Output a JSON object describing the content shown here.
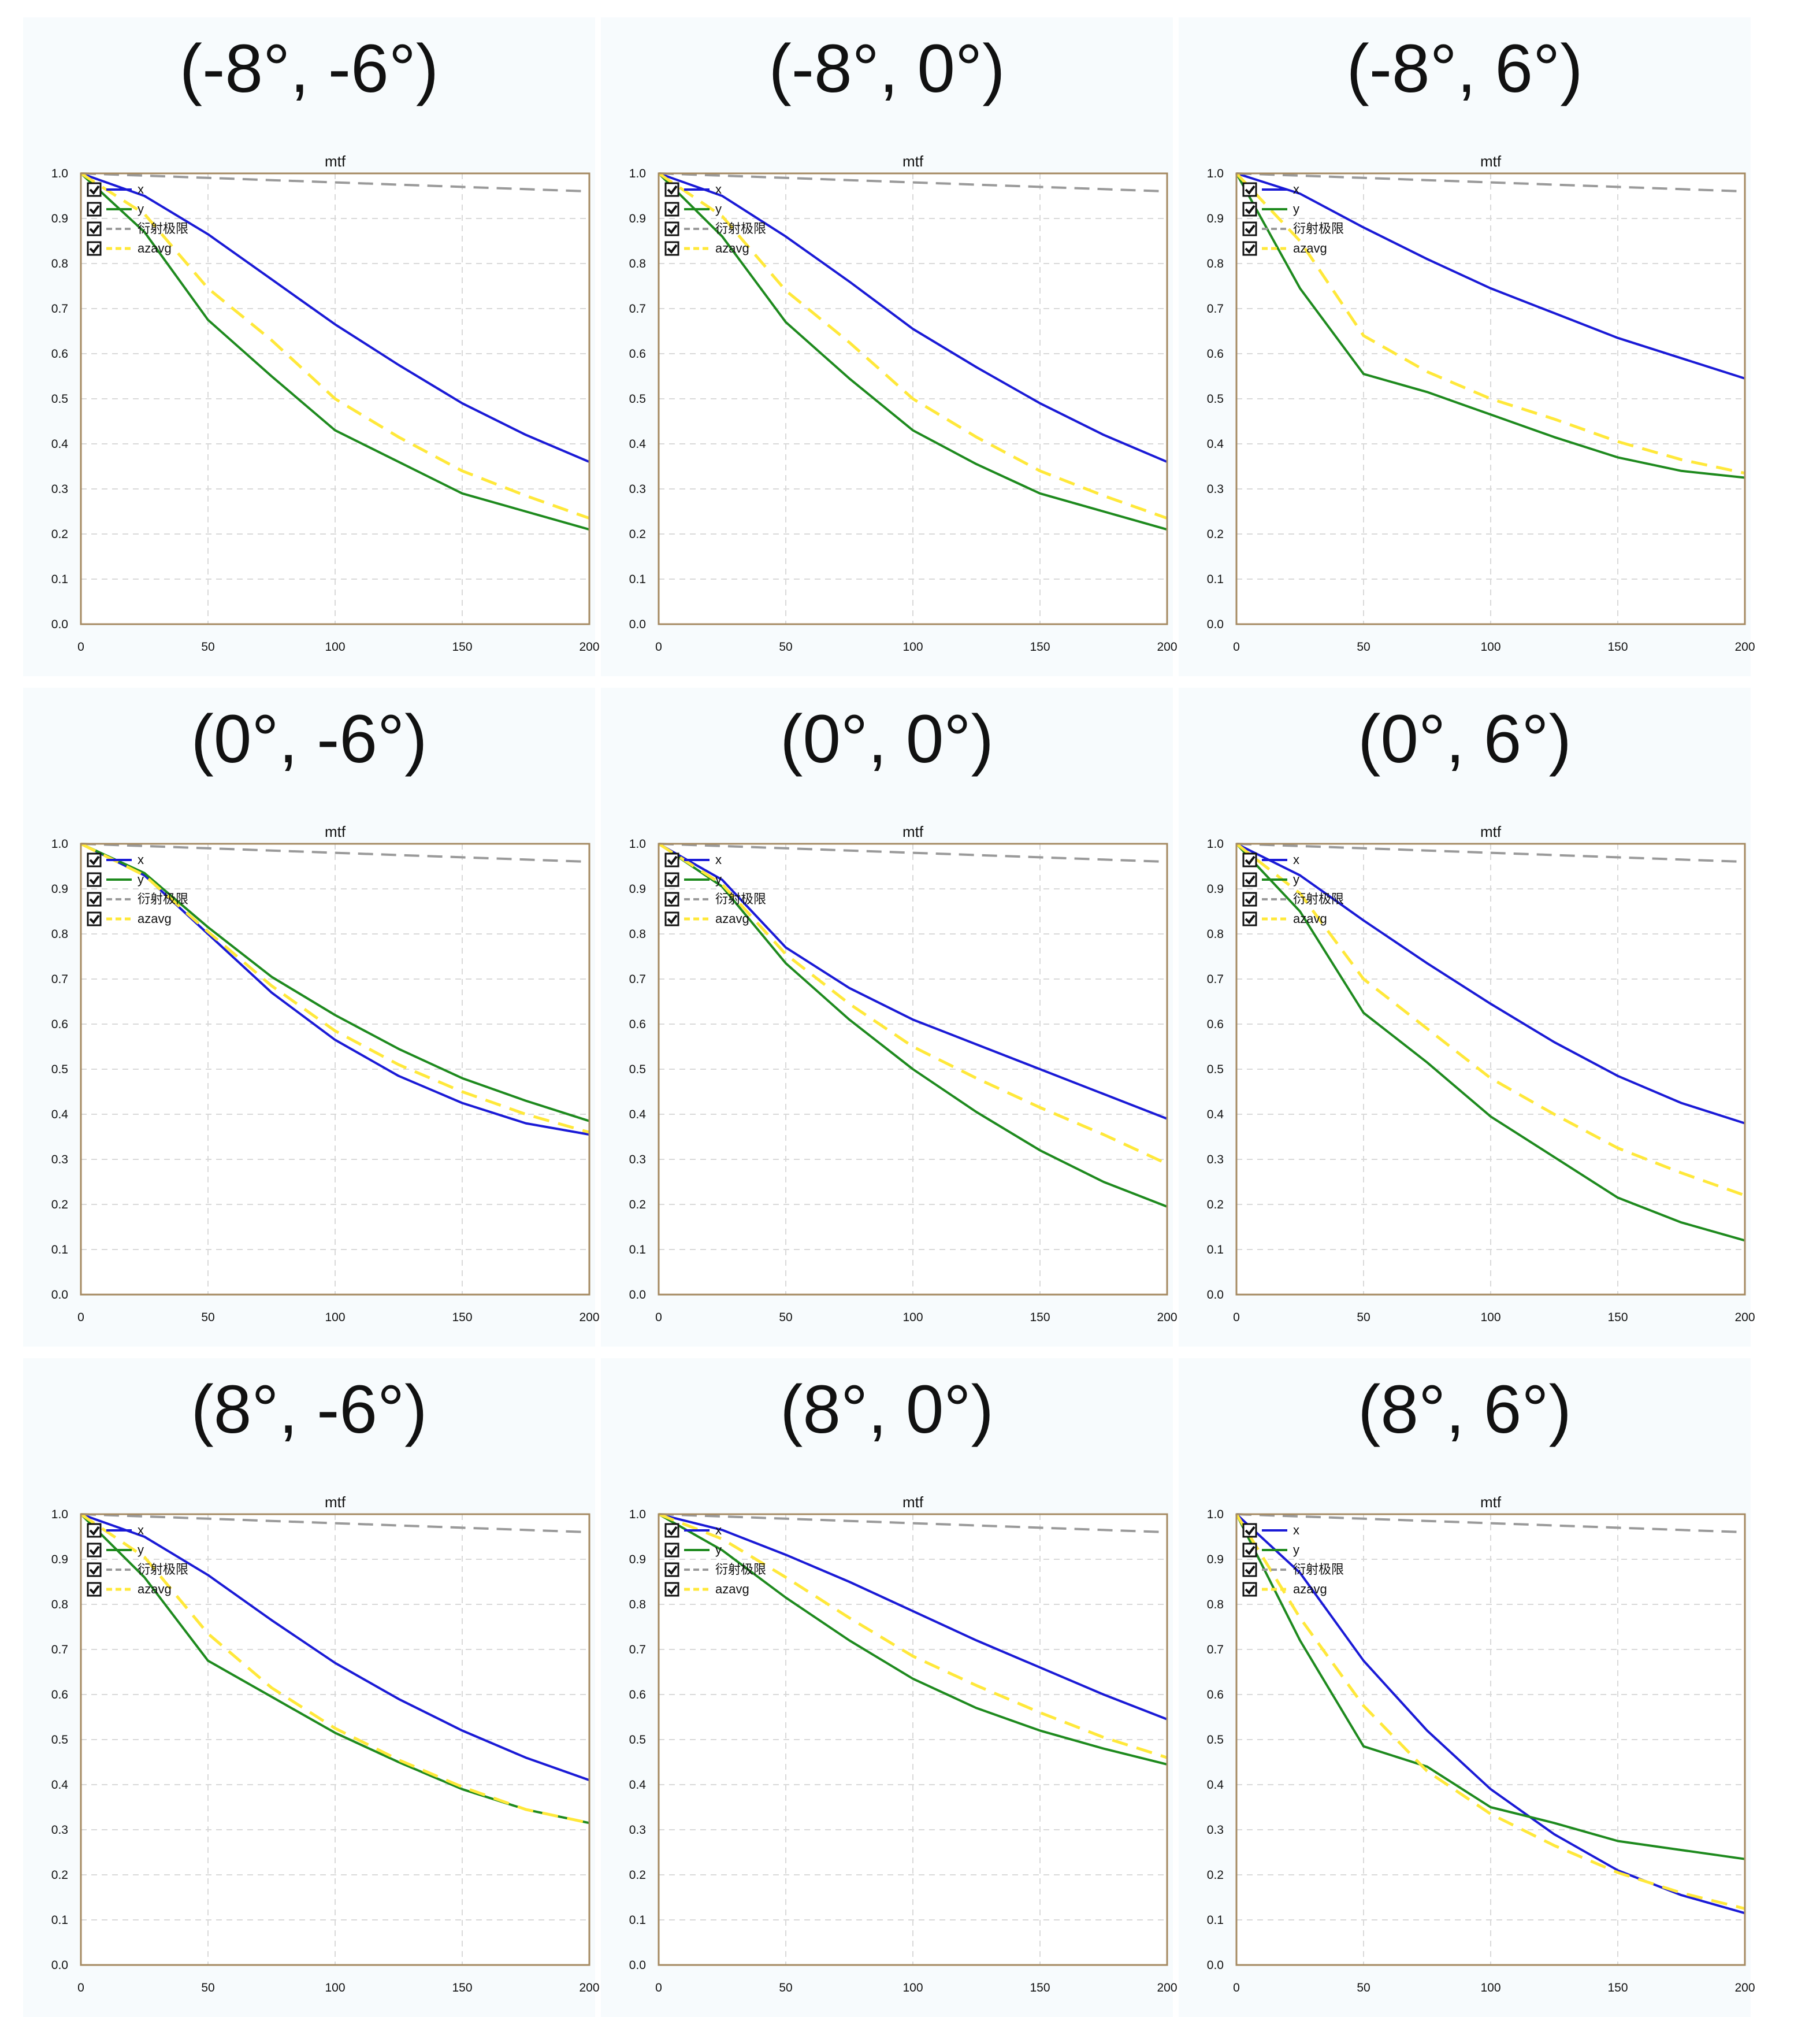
{
  "colors": {
    "x": "#1a1ad6",
    "y": "#1e8a1e",
    "diffraction": "#9a9a9a",
    "azavg": "#ffe83a",
    "frame": "#a58a62",
    "grid": "#d9d9d9",
    "checkbox": "#111111"
  },
  "legend_labels": [
    "x",
    "y",
    "衍射极限",
    "azavg"
  ],
  "chart_data": [
    {
      "panel_title": "(-8°, -6°)",
      "title": "mtf",
      "type": "line",
      "x": [
        0,
        25,
        50,
        75,
        100,
        125,
        150,
        175,
        200
      ],
      "xlim": [
        0,
        200
      ],
      "ylim": [
        0,
        1.0
      ],
      "xticks": [
        "0",
        "50",
        "100",
        "150",
        "200"
      ],
      "yticks": [
        "0.0",
        "0.1",
        "0.2",
        "0.3",
        "0.4",
        "0.5",
        "0.6",
        "0.7",
        "0.8",
        "0.9",
        "1.0"
      ],
      "grid": true,
      "legend_position": "top-left",
      "series": [
        {
          "name": "x",
          "values": [
            1.0,
            0.95,
            0.865,
            0.765,
            0.665,
            0.575,
            0.49,
            0.42,
            0.36
          ]
        },
        {
          "name": "y",
          "values": [
            1.0,
            0.87,
            0.675,
            0.55,
            0.43,
            0.36,
            0.29,
            0.25,
            0.21
          ]
        },
        {
          "name": "衍射极限",
          "values": [
            1.0,
            0.995,
            0.99,
            0.985,
            0.98,
            0.975,
            0.97,
            0.965,
            0.96
          ]
        },
        {
          "name": "azavg",
          "values": [
            1.0,
            0.91,
            0.745,
            0.63,
            0.5,
            0.415,
            0.34,
            0.285,
            0.235
          ]
        }
      ]
    },
    {
      "panel_title": "(-8°, 0°)",
      "title": "mtf",
      "type": "line",
      "x": [
        0,
        25,
        50,
        75,
        100,
        125,
        150,
        175,
        200
      ],
      "xlim": [
        0,
        200
      ],
      "ylim": [
        0,
        1.0
      ],
      "xticks": [
        "0",
        "50",
        "100",
        "150",
        "200"
      ],
      "yticks": [
        "0.0",
        "0.1",
        "0.2",
        "0.3",
        "0.4",
        "0.5",
        "0.6",
        "0.7",
        "0.8",
        "0.9",
        "1.0"
      ],
      "grid": true,
      "legend_position": "top-left",
      "series": [
        {
          "name": "x",
          "values": [
            1.0,
            0.95,
            0.86,
            0.76,
            0.655,
            0.57,
            0.49,
            0.42,
            0.36
          ]
        },
        {
          "name": "y",
          "values": [
            1.0,
            0.86,
            0.67,
            0.545,
            0.43,
            0.355,
            0.29,
            0.25,
            0.21
          ]
        },
        {
          "name": "衍射极限",
          "values": [
            1.0,
            0.995,
            0.99,
            0.985,
            0.98,
            0.975,
            0.97,
            0.965,
            0.96
          ]
        },
        {
          "name": "azavg",
          "values": [
            1.0,
            0.905,
            0.74,
            0.625,
            0.5,
            0.415,
            0.34,
            0.285,
            0.235
          ]
        }
      ]
    },
    {
      "panel_title": "(-8°, 6°)",
      "title": "mtf",
      "type": "line",
      "x": [
        0,
        25,
        50,
        75,
        100,
        125,
        150,
        175,
        200
      ],
      "xlim": [
        0,
        200
      ],
      "ylim": [
        0,
        1.0
      ],
      "xticks": [
        "0",
        "50",
        "100",
        "150",
        "200"
      ],
      "yticks": [
        "0.0",
        "0.1",
        "0.2",
        "0.3",
        "0.4",
        "0.5",
        "0.6",
        "0.7",
        "0.8",
        "0.9",
        "1.0"
      ],
      "grid": true,
      "legend_position": "top-left",
      "series": [
        {
          "name": "x",
          "values": [
            1.0,
            0.955,
            0.88,
            0.81,
            0.745,
            0.69,
            0.635,
            0.59,
            0.545
          ]
        },
        {
          "name": "y",
          "values": [
            1.0,
            0.745,
            0.555,
            0.515,
            0.465,
            0.415,
            0.37,
            0.34,
            0.325
          ]
        },
        {
          "name": "衍射极限",
          "values": [
            1.0,
            0.995,
            0.99,
            0.985,
            0.98,
            0.975,
            0.97,
            0.965,
            0.96
          ]
        },
        {
          "name": "azavg",
          "values": [
            1.0,
            0.85,
            0.64,
            0.56,
            0.5,
            0.455,
            0.405,
            0.365,
            0.335
          ]
        }
      ]
    },
    {
      "panel_title": "(0°, -6°)",
      "title": "mtf",
      "type": "line",
      "x": [
        0,
        25,
        50,
        75,
        100,
        125,
        150,
        175,
        200
      ],
      "xlim": [
        0,
        200
      ],
      "ylim": [
        0,
        1.0
      ],
      "xticks": [
        "0",
        "50",
        "100",
        "150",
        "200"
      ],
      "yticks": [
        "0.0",
        "0.1",
        "0.2",
        "0.3",
        "0.4",
        "0.5",
        "0.6",
        "0.7",
        "0.8",
        "0.9",
        "1.0"
      ],
      "grid": true,
      "legend_position": "top-left",
      "series": [
        {
          "name": "x",
          "values": [
            1.0,
            0.93,
            0.8,
            0.67,
            0.565,
            0.485,
            0.425,
            0.38,
            0.355
          ]
        },
        {
          "name": "y",
          "values": [
            1.0,
            0.935,
            0.815,
            0.705,
            0.62,
            0.545,
            0.48,
            0.43,
            0.385
          ]
        },
        {
          "name": "衍射极限",
          "values": [
            1.0,
            0.995,
            0.99,
            0.985,
            0.98,
            0.975,
            0.97,
            0.965,
            0.96
          ]
        },
        {
          "name": "azavg",
          "values": [
            1.0,
            0.93,
            0.805,
            0.685,
            0.585,
            0.51,
            0.45,
            0.4,
            0.36
          ]
        }
      ]
    },
    {
      "panel_title": "(0°, 0°)",
      "title": "mtf",
      "type": "line",
      "x": [
        0,
        25,
        50,
        75,
        100,
        125,
        150,
        175,
        200
      ],
      "xlim": [
        0,
        200
      ],
      "ylim": [
        0,
        1.0
      ],
      "xticks": [
        "0",
        "50",
        "100",
        "150",
        "200"
      ],
      "yticks": [
        "0.0",
        "0.1",
        "0.2",
        "0.3",
        "0.4",
        "0.5",
        "0.6",
        "0.7",
        "0.8",
        "0.9",
        "1.0"
      ],
      "grid": true,
      "legend_position": "top-left",
      "series": [
        {
          "name": "x",
          "values": [
            1.0,
            0.92,
            0.77,
            0.68,
            0.61,
            0.555,
            0.5,
            0.445,
            0.39
          ]
        },
        {
          "name": "y",
          "values": [
            1.0,
            0.905,
            0.735,
            0.61,
            0.5,
            0.405,
            0.32,
            0.25,
            0.195
          ]
        },
        {
          "name": "衍射极限",
          "values": [
            1.0,
            0.995,
            0.99,
            0.985,
            0.98,
            0.975,
            0.97,
            0.965,
            0.96
          ]
        },
        {
          "name": "azavg",
          "values": [
            1.0,
            0.91,
            0.755,
            0.645,
            0.55,
            0.48,
            0.415,
            0.355,
            0.29
          ]
        }
      ]
    },
    {
      "panel_title": "(0°, 6°)",
      "title": "mtf",
      "type": "line",
      "x": [
        0,
        25,
        50,
        75,
        100,
        125,
        150,
        175,
        200
      ],
      "xlim": [
        0,
        200
      ],
      "ylim": [
        0,
        1.0
      ],
      "xticks": [
        "0",
        "50",
        "100",
        "150",
        "200"
      ],
      "yticks": [
        "0.0",
        "0.1",
        "0.2",
        "0.3",
        "0.4",
        "0.5",
        "0.6",
        "0.7",
        "0.8",
        "0.9",
        "1.0"
      ],
      "grid": true,
      "legend_position": "top-left",
      "series": [
        {
          "name": "x",
          "values": [
            1.0,
            0.93,
            0.83,
            0.735,
            0.645,
            0.56,
            0.485,
            0.425,
            0.38
          ]
        },
        {
          "name": "y",
          "values": [
            1.0,
            0.85,
            0.625,
            0.515,
            0.395,
            0.305,
            0.215,
            0.16,
            0.12
          ]
        },
        {
          "name": "衍射极限",
          "values": [
            1.0,
            0.995,
            0.99,
            0.985,
            0.98,
            0.975,
            0.97,
            0.965,
            0.96
          ]
        },
        {
          "name": "azavg",
          "values": [
            1.0,
            0.89,
            0.7,
            0.59,
            0.48,
            0.4,
            0.325,
            0.27,
            0.22
          ]
        }
      ]
    },
    {
      "panel_title": "(8°, -6°)",
      "title": "mtf",
      "type": "line",
      "x": [
        0,
        25,
        50,
        75,
        100,
        125,
        150,
        175,
        200
      ],
      "xlim": [
        0,
        200
      ],
      "ylim": [
        0,
        1.0
      ],
      "xticks": [
        "0",
        "50",
        "100",
        "150",
        "200"
      ],
      "yticks": [
        "0.0",
        "0.1",
        "0.2",
        "0.3",
        "0.4",
        "0.5",
        "0.6",
        "0.7",
        "0.8",
        "0.9",
        "1.0"
      ],
      "grid": true,
      "legend_position": "top-left",
      "series": [
        {
          "name": "x",
          "values": [
            1.0,
            0.95,
            0.865,
            0.765,
            0.67,
            0.59,
            0.52,
            0.46,
            0.41
          ]
        },
        {
          "name": "y",
          "values": [
            1.0,
            0.86,
            0.675,
            0.595,
            0.515,
            0.45,
            0.39,
            0.345,
            0.315
          ]
        },
        {
          "name": "衍射极限",
          "values": [
            1.0,
            0.995,
            0.99,
            0.985,
            0.98,
            0.975,
            0.97,
            0.965,
            0.96
          ]
        },
        {
          "name": "azavg",
          "values": [
            1.0,
            0.905,
            0.735,
            0.615,
            0.525,
            0.455,
            0.395,
            0.345,
            0.315
          ]
        }
      ]
    },
    {
      "panel_title": "(8°, 0°)",
      "title": "mtf",
      "type": "line",
      "x": [
        0,
        25,
        50,
        75,
        100,
        125,
        150,
        175,
        200
      ],
      "xlim": [
        0,
        200
      ],
      "ylim": [
        0,
        1.0
      ],
      "xticks": [
        "0",
        "50",
        "100",
        "150",
        "200"
      ],
      "yticks": [
        "0.0",
        "0.1",
        "0.2",
        "0.3",
        "0.4",
        "0.5",
        "0.6",
        "0.7",
        "0.8",
        "0.9",
        "1.0"
      ],
      "grid": true,
      "legend_position": "top-left",
      "series": [
        {
          "name": "x",
          "values": [
            1.0,
            0.965,
            0.91,
            0.85,
            0.785,
            0.72,
            0.66,
            0.6,
            0.545
          ]
        },
        {
          "name": "y",
          "values": [
            1.0,
            0.92,
            0.815,
            0.72,
            0.635,
            0.57,
            0.52,
            0.48,
            0.445
          ]
        },
        {
          "name": "衍射极限",
          "values": [
            1.0,
            0.995,
            0.99,
            0.985,
            0.98,
            0.975,
            0.97,
            0.965,
            0.96
          ]
        },
        {
          "name": "azavg",
          "values": [
            1.0,
            0.945,
            0.86,
            0.77,
            0.685,
            0.62,
            0.56,
            0.505,
            0.46
          ]
        }
      ]
    },
    {
      "panel_title": "(8°, 6°)",
      "title": "mtf",
      "type": "line",
      "x": [
        0,
        25,
        50,
        75,
        100,
        125,
        150,
        175,
        200
      ],
      "xlim": [
        0,
        200
      ],
      "ylim": [
        0,
        1.0
      ],
      "xticks": [
        "0",
        "50",
        "100",
        "150",
        "200"
      ],
      "yticks": [
        "0.0",
        "0.1",
        "0.2",
        "0.3",
        "0.4",
        "0.5",
        "0.6",
        "0.7",
        "0.8",
        "0.9",
        "1.0"
      ],
      "grid": true,
      "legend_position": "top-left",
      "series": [
        {
          "name": "x",
          "values": [
            1.0,
            0.87,
            0.675,
            0.52,
            0.39,
            0.29,
            0.21,
            0.155,
            0.115
          ]
        },
        {
          "name": "y",
          "values": [
            1.0,
            0.72,
            0.485,
            0.44,
            0.35,
            0.315,
            0.275,
            0.255,
            0.235
          ]
        },
        {
          "name": "衍射极限",
          "values": [
            1.0,
            0.995,
            0.99,
            0.985,
            0.98,
            0.975,
            0.97,
            0.965,
            0.96
          ]
        },
        {
          "name": "azavg",
          "values": [
            1.0,
            0.77,
            0.575,
            0.43,
            0.335,
            0.265,
            0.205,
            0.16,
            0.125
          ]
        }
      ]
    }
  ]
}
